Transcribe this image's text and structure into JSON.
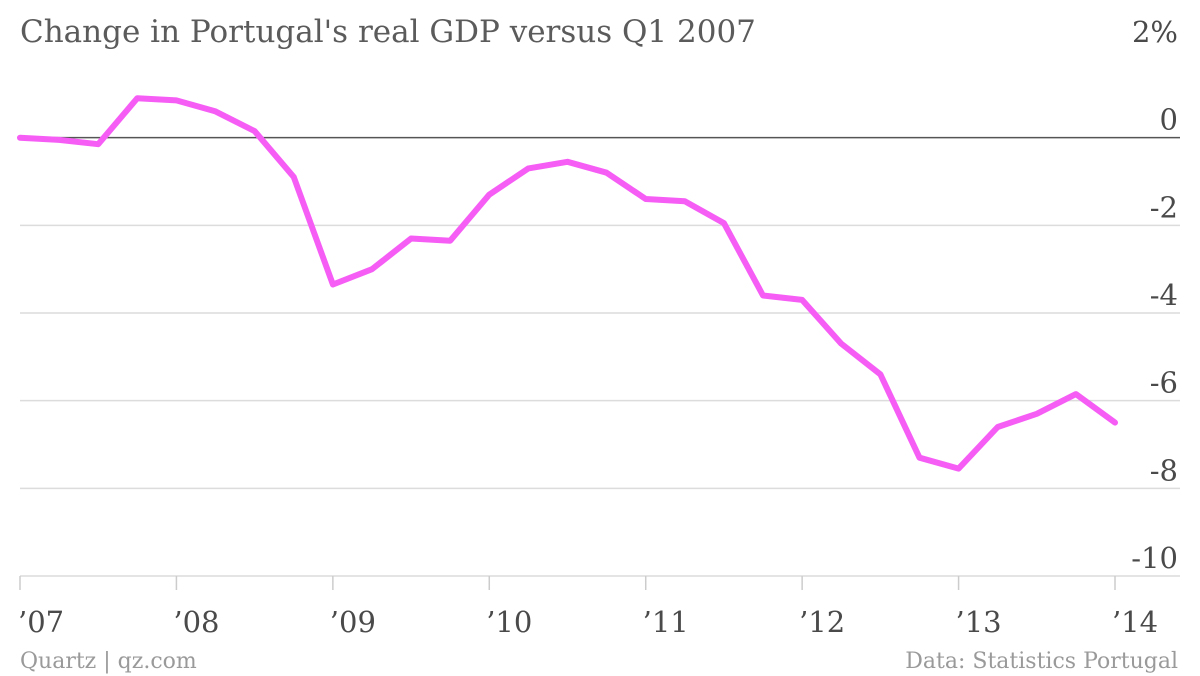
{
  "chart_data": {
    "type": "line",
    "title": "Change in Portugal's real GDP versus Q1 2007",
    "source": "Data: Statistics Portugal",
    "credit": "Quartz | qz.com",
    "ylim": [
      -10,
      2
    ],
    "y_ticks": [
      2,
      0,
      -2,
      -4,
      -6,
      -8,
      -10
    ],
    "y_tick_labels": [
      "2%",
      "0",
      "-2",
      "-4",
      "-6",
      "-8",
      "-10"
    ],
    "x_ticks": [
      2007,
      2008,
      2009,
      2010,
      2011,
      2012,
      2013,
      2014
    ],
    "x_tick_labels": [
      "’07",
      "’08",
      "’09",
      "’10",
      "’11",
      "’12",
      "’13",
      "’14"
    ],
    "grid": true,
    "line_color": "#f55df5",
    "series": [
      {
        "x": [
          "2007 Q1",
          "2007 Q2",
          "2007 Q3",
          "2007 Q4",
          "2008 Q1",
          "2008 Q2",
          "2008 Q3",
          "2008 Q4",
          "2009 Q1",
          "2009 Q2",
          "2009 Q3",
          "2009 Q4",
          "2010 Q1",
          "2010 Q2",
          "2010 Q3",
          "2010 Q4",
          "2011 Q1",
          "2011 Q2",
          "2011 Q3",
          "2011 Q4",
          "2012 Q1",
          "2012 Q2",
          "2012 Q3",
          "2012 Q4",
          "2013 Q1",
          "2013 Q2",
          "2013 Q3",
          "2013 Q4",
          "2014 Q1"
        ],
        "values": [
          0,
          -0.05,
          -0.15,
          0.9,
          0.85,
          0.6,
          0.15,
          -0.9,
          -3.35,
          -3.0,
          -2.3,
          -2.35,
          -1.3,
          -0.7,
          -0.55,
          -0.8,
          -1.4,
          -1.45,
          -1.95,
          -3.6,
          -3.7,
          -4.7,
          -5.4,
          -7.3,
          -7.55,
          -6.6,
          -6.3,
          -5.85,
          -6.5
        ]
      }
    ]
  }
}
